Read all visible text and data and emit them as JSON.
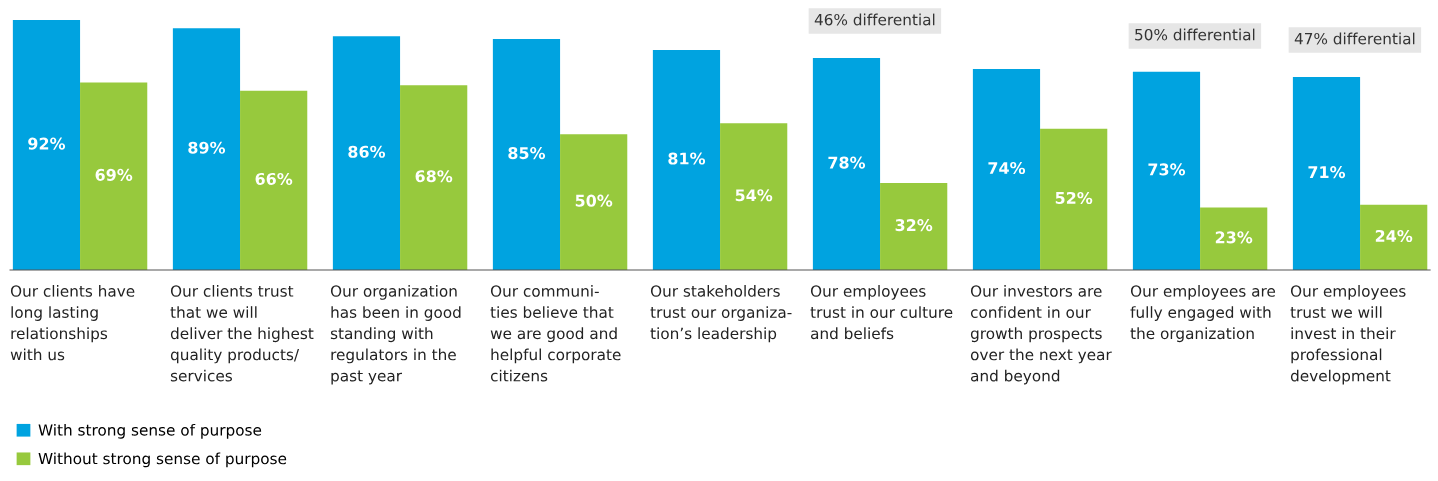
{
  "chart_data": {
    "type": "bar",
    "categories": [
      "Our clients have\nlong lasting\nrelationships\nwith us",
      "Our clients trust\nthat we will\ndeliver the highest\nquality products/\nservices",
      "Our organization\nhas been in good\nstanding with\nregulators in the\npast year",
      "Our communi-\nties believe that\nwe are good and\nhelpful corporate\ncitizens",
      "Our stakeholders\ntrust our organiza-\ntion’s leadership",
      "Our employees\ntrust in our culture\nand beliefs",
      "Our investors are\nconfident in our\ngrowth prospects\nover the next year\nand beyond",
      "Our employees are\nfully engaged with\nthe organization",
      "Our employees\ntrust we will\ninvest in their\nprofessional\ndevelopment"
    ],
    "series": [
      {
        "name": "With strong sense of purpose",
        "color": "#00a3e0",
        "values": [
          92,
          89,
          86,
          85,
          81,
          78,
          74,
          73,
          71
        ],
        "value_labels": [
          "92%",
          "89%",
          "86%",
          "85%",
          "81%",
          "78%",
          "74%",
          "73%",
          "71%"
        ]
      },
      {
        "name": "Without strong sense of purpose",
        "color": "#97c93d",
        "values": [
          69,
          66,
          68,
          50,
          54,
          32,
          52,
          23,
          24
        ],
        "value_labels": [
          "69%",
          "66%",
          "68%",
          "50%",
          "54%",
          "32%",
          "52%",
          "23%",
          "24%"
        ]
      }
    ],
    "annotations": [
      "46% differential",
      "50% differential",
      "47% differential"
    ],
    "legend": "bottom left"
  }
}
